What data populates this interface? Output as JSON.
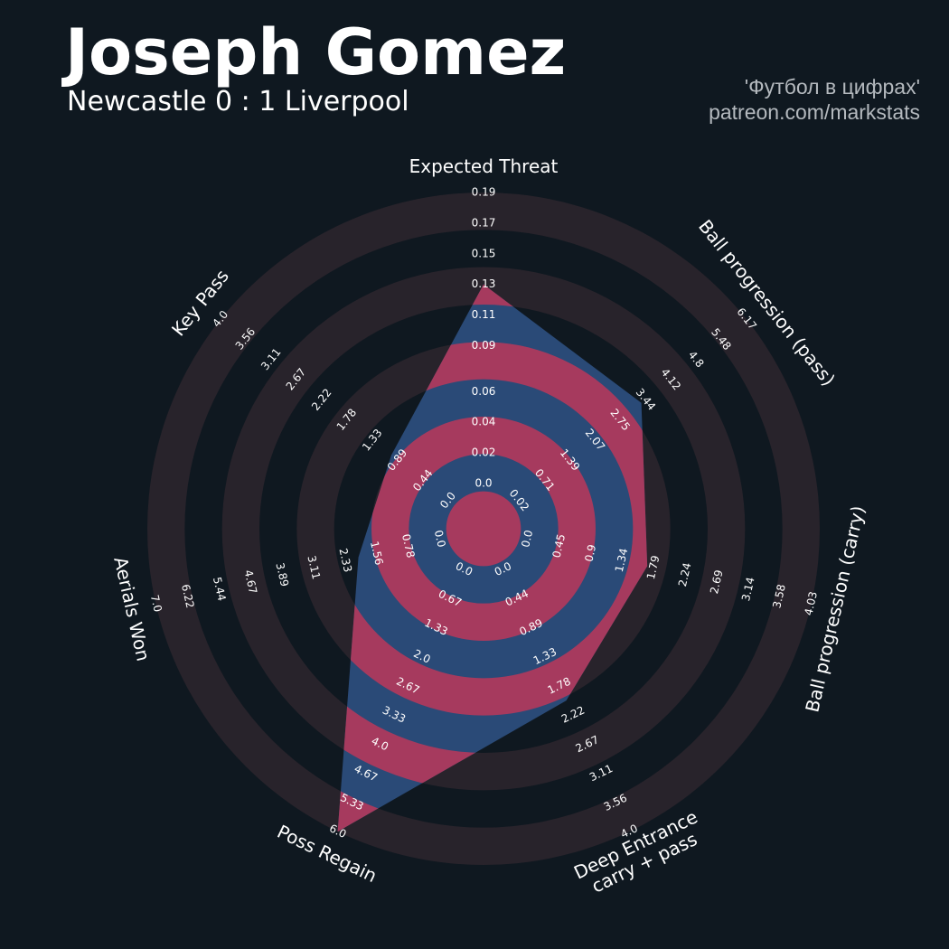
{
  "header": {
    "title": "Joseph Gomez",
    "subtitle": "Newcastle 0 : 1 Liverpool",
    "credit": [
      "'Футбол в цифрах'",
      "patreon.com/markstats"
    ]
  },
  "chart_data": {
    "type": "radar",
    "ring_color": "#28232b",
    "polygon_color": "#2a4a77",
    "polygon_alt_color": "#a63a5e",
    "params": [
      {
        "label": [
          "Expected Threat"
        ],
        "range": [
          0,
          0.19
        ],
        "value": 0.13,
        "ticks": [
          {
            "value": 0,
            "label": "0.0"
          },
          0.02,
          0.04,
          0.06,
          0.09,
          0.11,
          0.13,
          0.15,
          0.17,
          0.19
        ]
      },
      {
        "label": [
          "Ball progression (pass)"
        ],
        "range": [
          0.02,
          6.17
        ],
        "value": 3.33,
        "ticks": [
          0.02,
          0.71,
          1.39,
          2.07,
          2.75,
          3.44,
          4.12,
          4.8,
          5.48,
          6.17
        ]
      },
      {
        "label": [
          "Ball progression (carry)"
        ],
        "range": [
          0,
          4.03
        ],
        "value": 1.7,
        "ticks": [
          {
            "value": 0,
            "label": "0.0"
          },
          0.45,
          0.9,
          1.34,
          1.79,
          2.24,
          2.69,
          3.14,
          3.58,
          4.03
        ]
      },
      {
        "label": [
          "Deep Entrance",
          "carry + pass"
        ],
        "range": [
          0,
          4
        ],
        "value": 2.0,
        "ticks": [
          {
            "value": 0,
            "label": "0.0"
          },
          0.44,
          0.89,
          1.33,
          1.78,
          2.22,
          2.67,
          3.11,
          3.56,
          {
            "value": 4,
            "label": "4.0"
          }
        ]
      },
      {
        "label": [
          "Poss Regain"
        ],
        "range": [
          0,
          6
        ],
        "value": 6.0,
        "ticks": [
          {
            "value": 0,
            "label": "0.0"
          },
          0.67,
          1.33,
          {
            "value": 2,
            "label": "2.0"
          },
          2.67,
          3.33,
          {
            "value": 4,
            "label": "4.0"
          },
          4.67,
          5.33,
          {
            "value": 6,
            "label": "6.0"
          }
        ]
      },
      {
        "label": [
          "Aerials Won"
        ],
        "range": [
          0,
          7
        ],
        "value": 2.0,
        "ticks": [
          {
            "value": 0,
            "label": "0.0"
          },
          0.78,
          1.56,
          2.33,
          3.11,
          3.89,
          4.67,
          5.44,
          6.22,
          {
            "value": 7,
            "label": "7.0"
          }
        ]
      },
      {
        "label": [
          "Key Pass"
        ],
        "range": [
          0,
          4
        ],
        "value": 1.0,
        "ticks": [
          {
            "value": 0,
            "label": "0.0"
          },
          0.44,
          0.89,
          1.33,
          1.78,
          2.22,
          2.67,
          3.11,
          3.56,
          {
            "value": 4,
            "label": "4.0"
          }
        ]
      }
    ]
  }
}
